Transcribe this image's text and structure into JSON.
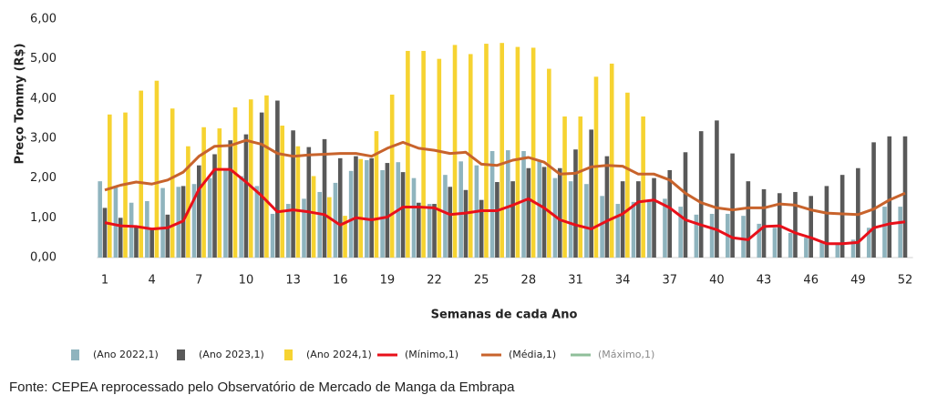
{
  "chart_data": {
    "type": "bar",
    "y_label": "Preço Tommy (R$)",
    "x_label": "Semanas de cada Ano",
    "source": "Fonte: CEPEA reprocessado pelo Observatório de Mercado de Manga da Embrapa",
    "categories": [
      1,
      null,
      null,
      4,
      null,
      null,
      7,
      null,
      null,
      10,
      null,
      null,
      13,
      null,
      null,
      16,
      null,
      null,
      19,
      null,
      null,
      22,
      null,
      null,
      25,
      null,
      null,
      28,
      null,
      null,
      31,
      null,
      null,
      34,
      null,
      null,
      37,
      null,
      null,
      40,
      null,
      null,
      43,
      null,
      null,
      46,
      null,
      null,
      49,
      null,
      null,
      52
    ],
    "ylim": [
      0,
      6
    ],
    "yticks": [
      {
        "value": 0,
        "label": "0,00"
      },
      {
        "value": 1,
        "label": "1,00"
      },
      {
        "value": 2,
        "label": "2,00"
      },
      {
        "value": 3,
        "label": "3,00"
      },
      {
        "value": 4,
        "label": "4,00"
      },
      {
        "value": 5,
        "label": "5,00"
      },
      {
        "value": 6,
        "label": "6,00"
      }
    ],
    "series": [
      {
        "name": "(Ano 2022,1)",
        "kind": "bar",
        "color": "#8fb4be",
        "values": [
          1.92,
          1.8,
          1.38,
          1.42,
          1.75,
          1.78,
          1.85,
          2.0,
          2.2,
          2.05,
          1.8,
          1.1,
          1.35,
          1.48,
          1.65,
          1.88,
          2.18,
          2.45,
          2.2,
          2.4,
          2.0,
          1.35,
          2.08,
          2.42,
          2.32,
          2.68,
          2.7,
          2.68,
          2.45,
          2.0,
          1.92,
          1.85,
          1.55,
          1.35,
          1.4,
          1.45,
          1.48,
          1.28,
          1.08,
          1.1,
          1.1,
          1.05,
          0.85,
          0.75,
          0.62,
          0.5,
          0.4,
          0.35,
          0.45,
          0.75,
          1.28,
          1.28
        ]
      },
      {
        "name": "(Ano 2023,1)",
        "kind": "bar",
        "color": "#595959",
        "values": [
          1.25,
          1.0,
          0.8,
          0.75,
          1.08,
          1.8,
          2.32,
          2.6,
          2.95,
          3.1,
          3.65,
          3.95,
          3.2,
          2.78,
          2.98,
          2.5,
          2.55,
          2.5,
          2.38,
          2.15,
          1.38,
          1.35,
          1.78,
          1.7,
          1.45,
          1.9,
          1.92,
          2.25,
          2.28,
          2.25,
          2.72,
          3.22,
          2.55,
          1.92,
          1.92,
          2.0,
          2.2,
          2.65,
          3.18,
          3.45,
          2.62,
          1.92,
          1.72,
          1.62,
          1.65,
          1.55,
          1.8,
          2.08,
          2.25,
          2.9,
          3.05,
          3.05
        ]
      },
      {
        "name": "(Ano 2024,1)",
        "kind": "bar",
        "color": "#f6d331",
        "values": [
          3.6,
          3.65,
          4.2,
          4.45,
          3.75,
          2.8,
          3.28,
          3.25,
          3.78,
          3.98,
          4.08,
          3.32,
          2.8,
          2.05,
          1.52,
          1.05,
          2.48,
          3.18,
          4.1,
          5.2,
          5.2,
          5.0,
          5.35,
          5.12,
          5.38,
          5.4,
          5.3,
          5.28,
          4.75,
          3.55,
          3.55,
          4.55,
          4.88,
          4.15,
          3.55,
          null,
          null,
          null,
          null,
          null,
          null,
          null,
          null,
          null,
          null,
          null,
          null,
          null,
          null,
          null,
          null,
          null
        ]
      },
      {
        "name": "(Mínimo,1)",
        "kind": "line",
        "color": "#e8101a",
        "values": [
          0.88,
          0.8,
          0.78,
          0.72,
          0.75,
          0.92,
          1.72,
          2.22,
          2.22,
          1.9,
          1.55,
          1.15,
          1.2,
          1.15,
          1.08,
          0.82,
          1.0,
          0.95,
          1.02,
          1.27,
          1.27,
          1.25,
          1.08,
          1.12,
          1.18,
          1.18,
          1.32,
          1.48,
          1.25,
          0.95,
          0.82,
          0.72,
          0.92,
          1.1,
          1.4,
          1.45,
          1.25,
          0.95,
          0.82,
          0.7,
          0.5,
          0.45,
          0.78,
          0.8,
          0.62,
          0.5,
          0.35,
          0.35,
          0.38,
          0.75,
          0.85,
          0.9
        ]
      },
      {
        "name": "(Média,1)",
        "kind": "line",
        "color": "#c8632c",
        "values": [
          1.7,
          1.82,
          1.9,
          1.85,
          1.95,
          2.15,
          2.55,
          2.8,
          2.82,
          2.95,
          2.85,
          2.62,
          2.55,
          2.58,
          2.6,
          2.62,
          2.62,
          2.55,
          2.75,
          2.9,
          2.75,
          2.7,
          2.62,
          2.65,
          2.35,
          2.32,
          2.45,
          2.52,
          2.4,
          2.1,
          2.12,
          2.28,
          2.32,
          2.3,
          2.1,
          2.1,
          1.95,
          1.62,
          1.38,
          1.25,
          1.2,
          1.25,
          1.25,
          1.35,
          1.32,
          1.2,
          1.12,
          1.1,
          1.08,
          1.22,
          1.45,
          1.62
        ]
      },
      {
        "name": "(Máximo,1)",
        "kind": "line",
        "color": "#8fbf9a",
        "legend_text_color": "#8a8a8a",
        "values": [
          null,
          null,
          null,
          null,
          null,
          null,
          null,
          null,
          null,
          null,
          null,
          null,
          null,
          null,
          null,
          null,
          null,
          null,
          null,
          null,
          null,
          null,
          null,
          null,
          null,
          null,
          null,
          null,
          null,
          null,
          null,
          null,
          null,
          null,
          null,
          null,
          null,
          null,
          null,
          null,
          null,
          null,
          null,
          null,
          null,
          null,
          null,
          null,
          null,
          null,
          null,
          null
        ]
      }
    ]
  }
}
